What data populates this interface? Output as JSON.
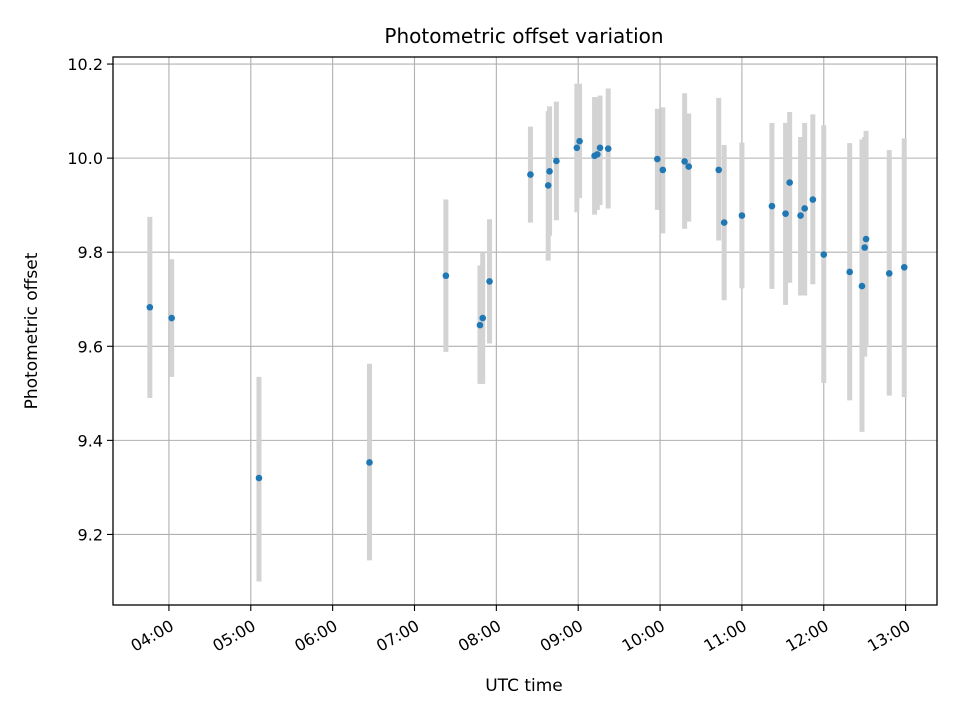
{
  "chart_data": {
    "type": "scatter",
    "title": "Photometric offset variation",
    "xlabel": "UTC time",
    "ylabel": "Photometric offset",
    "x_unit": "UTC time of day (HH:MM)",
    "xlim": [
      "03:19",
      "13:23"
    ],
    "ylim": [
      9.05,
      10.215
    ],
    "x_ticks": [
      "04:00",
      "05:00",
      "06:00",
      "07:00",
      "08:00",
      "09:00",
      "10:00",
      "11:00",
      "12:00",
      "13:00"
    ],
    "y_ticks": [
      9.2,
      9.4,
      9.6,
      9.8,
      10.0,
      10.2
    ],
    "grid": true,
    "legend": "none",
    "colors": {
      "point": "#1f77b4",
      "errorbar": "#d3d3d3",
      "grid": "#b0b0b0",
      "axis": "#000000"
    },
    "points": [
      {
        "t": "03:46",
        "y": 9.683,
        "lo": 9.49,
        "hi": 9.875
      },
      {
        "t": "04:02",
        "y": 9.66,
        "lo": 9.535,
        "hi": 9.785
      },
      {
        "t": "05:06",
        "y": 9.32,
        "lo": 9.1,
        "hi": 9.535
      },
      {
        "t": "06:27",
        "y": 9.353,
        "lo": 9.145,
        "hi": 9.563
      },
      {
        "t": "07:23",
        "y": 9.75,
        "lo": 9.588,
        "hi": 9.912
      },
      {
        "t": "07:48",
        "y": 9.645,
        "lo": 9.52,
        "hi": 9.772
      },
      {
        "t": "07:50",
        "y": 9.66,
        "lo": 9.52,
        "hi": 9.8
      },
      {
        "t": "07:55",
        "y": 9.738,
        "lo": 9.606,
        "hi": 9.87
      },
      {
        "t": "08:25",
        "y": 9.965,
        "lo": 9.863,
        "hi": 10.067
      },
      {
        "t": "08:38",
        "y": 9.942,
        "lo": 9.782,
        "hi": 10.1
      },
      {
        "t": "08:39",
        "y": 9.972,
        "lo": 9.835,
        "hi": 10.11
      },
      {
        "t": "08:44",
        "y": 9.994,
        "lo": 9.868,
        "hi": 10.12
      },
      {
        "t": "08:59",
        "y": 10.022,
        "lo": 9.885,
        "hi": 10.158
      },
      {
        "t": "09:01",
        "y": 10.036,
        "lo": 9.915,
        "hi": 10.158
      },
      {
        "t": "09:12",
        "y": 10.005,
        "lo": 9.88,
        "hi": 10.13
      },
      {
        "t": "09:14",
        "y": 10.008,
        "lo": 9.89,
        "hi": 10.128
      },
      {
        "t": "09:16",
        "y": 10.022,
        "lo": 9.9,
        "hi": 10.133
      },
      {
        "t": "09:22",
        "y": 10.02,
        "lo": 9.893,
        "hi": 10.148
      },
      {
        "t": "09:58",
        "y": 9.998,
        "lo": 9.89,
        "hi": 10.105
      },
      {
        "t": "10:02",
        "y": 9.975,
        "lo": 9.84,
        "hi": 10.108
      },
      {
        "t": "10:18",
        "y": 9.993,
        "lo": 9.85,
        "hi": 10.138
      },
      {
        "t": "10:21",
        "y": 9.982,
        "lo": 9.865,
        "hi": 10.095
      },
      {
        "t": "10:43",
        "y": 9.975,
        "lo": 9.825,
        "hi": 10.128
      },
      {
        "t": "10:47",
        "y": 9.863,
        "lo": 9.698,
        "hi": 10.028
      },
      {
        "t": "11:00",
        "y": 9.878,
        "lo": 9.723,
        "hi": 10.033
      },
      {
        "t": "11:22",
        "y": 9.898,
        "lo": 9.722,
        "hi": 10.075
      },
      {
        "t": "11:32",
        "y": 9.882,
        "lo": 9.688,
        "hi": 10.075
      },
      {
        "t": "11:35",
        "y": 9.948,
        "lo": 9.735,
        "hi": 10.098
      },
      {
        "t": "11:43",
        "y": 9.878,
        "lo": 9.708,
        "hi": 10.045
      },
      {
        "t": "11:46",
        "y": 9.893,
        "lo": 9.708,
        "hi": 10.075
      },
      {
        "t": "11:52",
        "y": 9.912,
        "lo": 9.732,
        "hi": 10.093
      },
      {
        "t": "12:00",
        "y": 9.795,
        "lo": 9.522,
        "hi": 10.07
      },
      {
        "t": "12:19",
        "y": 9.758,
        "lo": 9.485,
        "hi": 10.032
      },
      {
        "t": "12:28",
        "y": 9.728,
        "lo": 9.418,
        "hi": 10.04
      },
      {
        "t": "12:30",
        "y": 9.81,
        "lo": 9.578,
        "hi": 10.045
      },
      {
        "t": "12:31",
        "y": 9.828,
        "lo": 9.598,
        "hi": 10.058
      },
      {
        "t": "12:48",
        "y": 9.755,
        "lo": 9.495,
        "hi": 10.017
      },
      {
        "t": "12:59",
        "y": 9.768,
        "lo": 9.492,
        "hi": 10.042
      }
    ]
  }
}
